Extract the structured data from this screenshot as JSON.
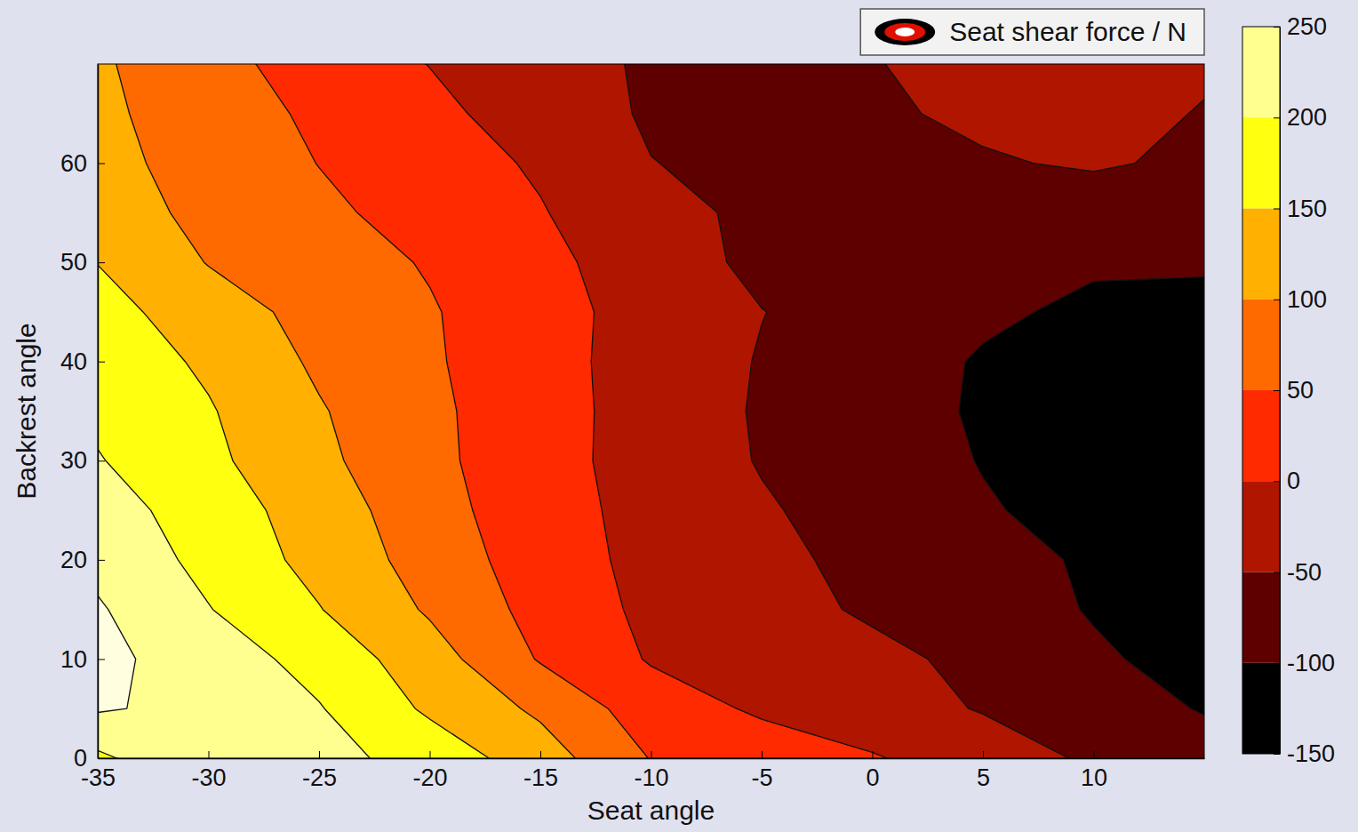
{
  "chart_data": {
    "type": "contour",
    "x_label": "Seat angle",
    "y_label": "Backrest angle",
    "x": [
      -35,
      -30,
      -25,
      -20,
      -15,
      -10,
      -5,
      0,
      5,
      10,
      15
    ],
    "y": [
      0,
      5,
      10,
      15,
      20,
      25,
      30,
      35,
      40,
      45,
      50,
      55,
      60,
      65,
      70
    ],
    "z": [
      [
        190,
        248,
        217,
        180,
        124,
        48,
        26,
        4,
        -26,
        -57,
        -80
      ],
      [
        255,
        236,
        203,
        142,
        91,
        24,
        -7,
        -30,
        -53,
        -78,
        -103
      ],
      [
        262,
        227,
        182,
        122,
        46,
        -4,
        -22,
        -39,
        -61,
        -94,
        -115
      ],
      [
        255,
        202,
        152,
        94,
        33,
        -11,
        -34,
        -56,
        -79,
        -103,
        -125
      ],
      [
        237,
        186,
        134,
        80,
        24,
        -14,
        -39,
        -62,
        -84,
        -106,
        -125
      ],
      [
        223,
        175,
        127,
        69,
        20,
        -16,
        -45,
        -70,
        -96,
        -115,
        -130
      ],
      [
        203,
        161,
        111,
        62,
        18,
        -20,
        -53,
        -77,
        -102,
        -120,
        -135
      ],
      [
        190,
        154,
        104,
        60,
        19,
        -20,
        -55,
        -82,
        -105,
        -125,
        -140
      ],
      [
        180,
        142,
        92,
        56,
        17,
        -20,
        -53,
        -79,
        -104,
        -120,
        -130
      ],
      [
        168,
        124,
        83,
        54,
        17,
        -18,
        -49,
        -71,
        -93,
        -108,
        -112
      ],
      [
        149,
        98,
        73,
        46,
        12,
        -24,
        -62,
        -75,
        -88,
        -95,
        -95
      ],
      [
        119,
        90,
        60,
        31,
        3,
        -35,
        -60,
        -70,
        -78,
        -80,
        -80
      ],
      [
        114,
        82,
        49,
        22,
        -6,
        -49,
        -62,
        -65,
        -55,
        -44,
        -60
      ],
      [
        110,
        75,
        41,
        11,
        -21,
        -56,
        -64,
        -58,
        -40,
        -38,
        -52
      ],
      [
        107,
        65,
        30,
        -1,
        -31,
        -56,
        -60,
        -52,
        -35,
        -35,
        -45
      ]
    ],
    "levels": [
      -150,
      -100,
      -50,
      0,
      50,
      100,
      150,
      200,
      250
    ],
    "colors": [
      "#000000",
      "#5e0000",
      "#b01500",
      "#ff2a00",
      "#ff6a00",
      "#ffb000",
      "#ffff10",
      "#ffff90",
      "#ffffe0"
    ],
    "xlim": [
      -35,
      15
    ],
    "ylim": [
      0,
      70
    ],
    "xticks": [
      -35,
      -30,
      -25,
      -20,
      -15,
      -10,
      -5,
      0,
      5,
      10
    ],
    "yticks": [
      0,
      10,
      20,
      30,
      40,
      50,
      60
    ],
    "colorbar": {
      "label": "Seat shear force / N",
      "lim": [
        -150,
        250
      ],
      "ticks": [
        -150,
        -100,
        -50,
        0,
        50,
        100,
        150,
        200,
        250
      ]
    },
    "legend": "top right"
  }
}
